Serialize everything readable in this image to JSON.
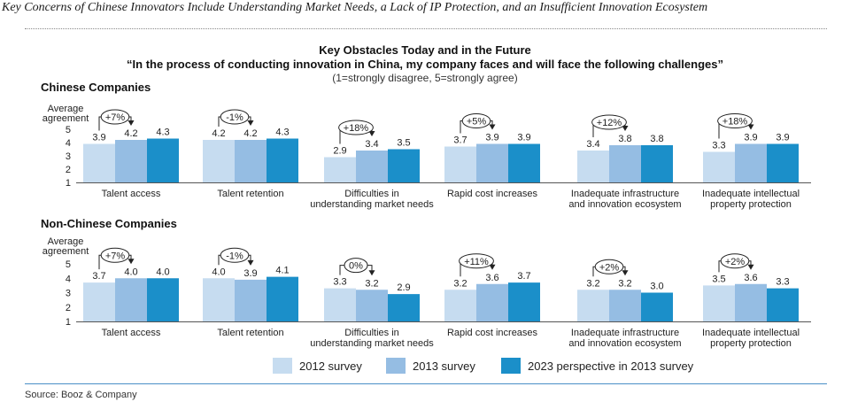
{
  "headline": "Key Concerns of Chinese Innovators Include Understanding Market Needs, a Lack of IP Protection, and an Insufficient Innovation Ecosystem",
  "colors": {
    "s2012": "#c6dcf0",
    "s2013": "#95bde3",
    "s2023": "#1b8fc9",
    "rule": "#4a8fc7"
  },
  "chart_data": {
    "type": "bar",
    "title": "Key Obstacles Today and in the Future",
    "subtitle": "“In the process of conducting innovation in China, my company faces and will face the following challenges”",
    "scale_note": "(1=strongly disagree, 5=strongly agree)",
    "ylabel": "Average agreement",
    "ylim": [
      1,
      5
    ],
    "yticks": [
      "1",
      "2",
      "3",
      "4",
      "5"
    ],
    "grid": false,
    "legend_position": "bottom",
    "categories": [
      [
        "Talent access"
      ],
      [
        "Talent retention"
      ],
      [
        "Difficulties in",
        "understanding market needs"
      ],
      [
        "Rapid cost increases"
      ],
      [
        "Inadequate infrastructure",
        "and innovation ecosystem"
      ],
      [
        "Inadequate intellectual",
        "property protection"
      ]
    ],
    "series_names": [
      "2012 survey",
      "2013 survey",
      "2023 perspective in 2013 survey"
    ],
    "panels": [
      {
        "name": "Chinese Companies",
        "series": [
          {
            "name": "2012 survey",
            "values": [
              3.9,
              4.2,
              2.9,
              3.7,
              3.4,
              3.3
            ]
          },
          {
            "name": "2013 survey",
            "values": [
              4.2,
              4.2,
              3.4,
              3.9,
              3.8,
              3.9
            ]
          },
          {
            "name": "2023 perspective in 2013 survey",
            "values": [
              4.3,
              4.3,
              3.5,
              3.9,
              3.8,
              3.9
            ]
          }
        ],
        "changes": [
          "+7%",
          "-1%",
          "+18%",
          "+5%",
          "+12%",
          "+18%"
        ]
      },
      {
        "name": "Non-Chinese Companies",
        "series": [
          {
            "name": "2012 survey",
            "values": [
              3.7,
              4.0,
              3.3,
              3.2,
              3.2,
              3.5
            ]
          },
          {
            "name": "2013 survey",
            "values": [
              4.0,
              3.9,
              3.2,
              3.6,
              3.2,
              3.6
            ]
          },
          {
            "name": "2023 perspective in 2013 survey",
            "values": [
              4.0,
              4.1,
              2.9,
              3.7,
              3.0,
              3.3
            ]
          }
        ],
        "changes": [
          "+7%",
          "-1%",
          "0%",
          "+11%",
          "+2%",
          "+2%"
        ]
      }
    ]
  },
  "source": "Source: Booz & Company"
}
